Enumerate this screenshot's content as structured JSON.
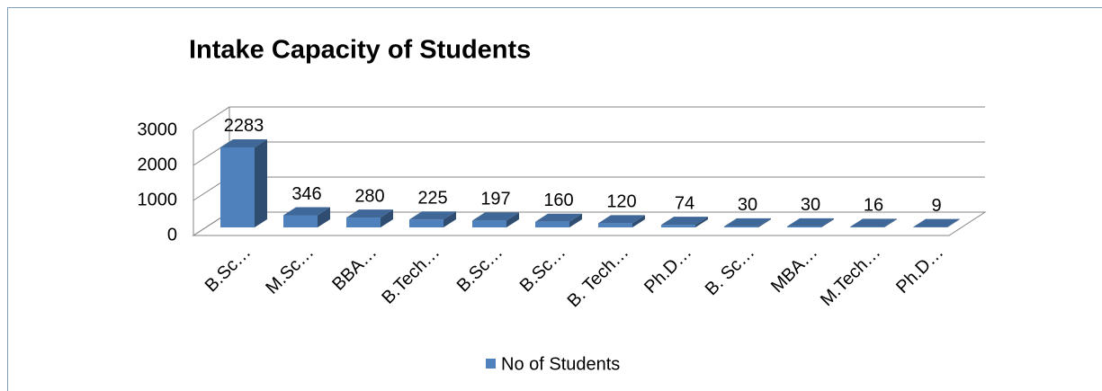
{
  "chart_data": {
    "type": "bar3d",
    "title": "Intake Capacity of Students",
    "categories": [
      "B.Sc…",
      "M.Sc…",
      "BBA…",
      "B.Tech…",
      "B.Sc…",
      "B.Sc…",
      "B. Tech…",
      "Ph.D…",
      "B. Sc…",
      "MBA…",
      "M.Tech…",
      "Ph.D…"
    ],
    "series": [
      {
        "name": "No of Students",
        "color": "#4f81bd",
        "values": [
          2283,
          346,
          280,
          225,
          197,
          160,
          120,
          74,
          30,
          30,
          16,
          9
        ]
      }
    ],
    "ylim": [
      0,
      3000
    ],
    "yticks": [
      0,
      1000,
      2000,
      3000
    ],
    "grid": true,
    "legend": "bottom"
  }
}
